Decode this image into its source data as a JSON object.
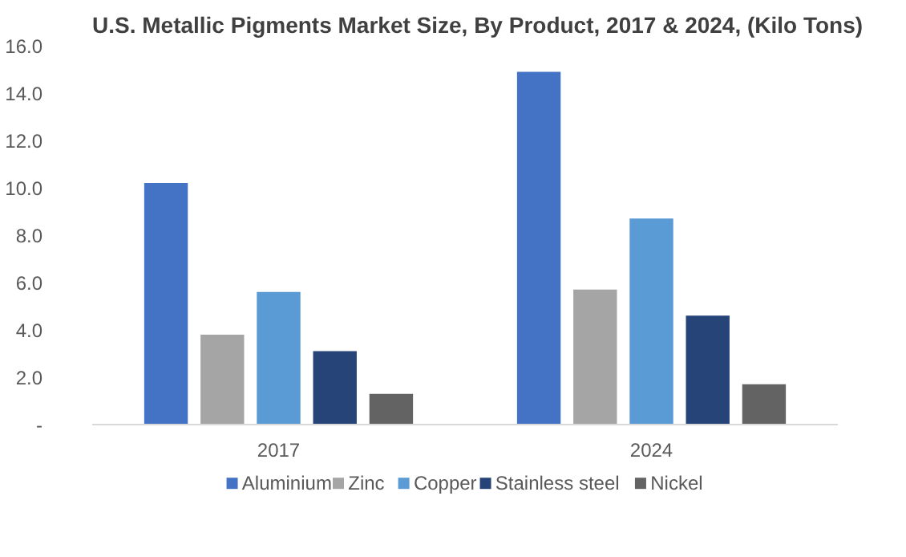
{
  "chart_data": {
    "type": "bar",
    "title": "U.S. Metallic Pigments Market Size, By Product, 2017 & 2024, (Kilo Tons)",
    "categories": [
      "2017",
      "2024"
    ],
    "series": [
      {
        "name": "Aluminium",
        "color": "#4472c4",
        "values": [
          10.2,
          14.9
        ]
      },
      {
        "name": "Zinc",
        "color": "#a5a5a5",
        "values": [
          3.8,
          5.7
        ]
      },
      {
        "name": "Copper",
        "color": "#5b9bd5",
        "values": [
          5.6,
          8.7
        ]
      },
      {
        "name": "Stainless steel",
        "color": "#264478",
        "values": [
          3.1,
          4.6
        ]
      },
      {
        "name": "Nickel",
        "color": "#636363",
        "values": [
          1.3,
          1.7
        ]
      }
    ],
    "ylim": [
      0,
      16
    ],
    "yticks": [
      {
        "value": 0,
        "label": "-"
      },
      {
        "value": 2,
        "label": "2.0"
      },
      {
        "value": 4,
        "label": "4.0"
      },
      {
        "value": 6,
        "label": "6.0"
      },
      {
        "value": 8,
        "label": "8.0"
      },
      {
        "value": 10,
        "label": "10.0"
      },
      {
        "value": 12,
        "label": "12.0"
      },
      {
        "value": 14,
        "label": "14.0"
      },
      {
        "value": 16,
        "label": "16.0"
      }
    ],
    "grid": false,
    "legend": "bottom"
  }
}
